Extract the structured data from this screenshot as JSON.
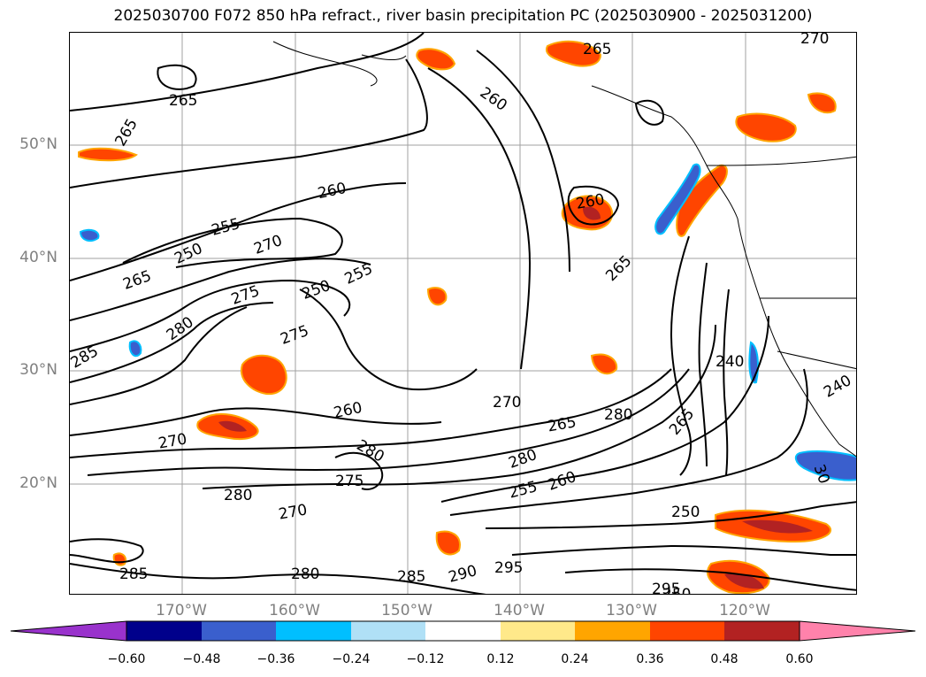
{
  "title": "2025030700 F072 850 hPa refract., river basin precipitation PC (2025030900 - 2025031200)",
  "map": {
    "lat_labels": [
      "50°N",
      "40°N",
      "30°N",
      "20°N"
    ],
    "lon_labels": [
      "170°W",
      "160°W",
      "150°W",
      "140°W",
      "130°W",
      "120°W"
    ],
    "contour_labels": [
      "265",
      "265",
      "265",
      "260",
      "260",
      "260",
      "255",
      "255",
      "250",
      "250",
      "250",
      "265",
      "270",
      "270",
      "275",
      "275",
      "280",
      "280",
      "280",
      "280",
      "280",
      "280",
      "285",
      "285",
      "285",
      "290",
      "295",
      "295",
      "260",
      "265",
      "265",
      "270",
      "270",
      "275",
      "255",
      "260",
      "265",
      "240",
      "240",
      "250",
      "30",
      "270"
    ]
  },
  "colorbar": {
    "tick_labels": [
      "−0.60",
      "−0.48",
      "−0.36",
      "−0.24",
      "−0.12",
      "0.12",
      "0.24",
      "0.36",
      "0.48",
      "0.60"
    ],
    "colors": [
      "#9932cc",
      "#00008b",
      "#3a5fcd",
      "#00bfff",
      "#b0e0f6",
      "#ffffff",
      "#ffe98a",
      "#ffa500",
      "#ff4500",
      "#b22222",
      "#ff82ab"
    ]
  }
}
